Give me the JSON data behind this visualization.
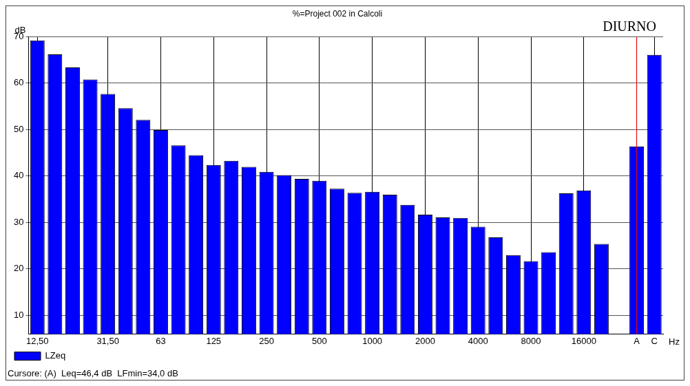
{
  "chart_data": {
    "type": "bar",
    "title": "%=Project 002 in Calcoli",
    "ylabel": "dB",
    "xlabel": "Hz",
    "annotations": [
      "DIURNO",
      "Cursore: (A)  Leq=46,4 dB  LFmin=34,0 dB"
    ],
    "categories": [
      "12,50",
      null,
      null,
      null,
      "31,50",
      null,
      null,
      "63",
      null,
      null,
      "125",
      null,
      null,
      "250",
      null,
      null,
      "500",
      null,
      null,
      "1000",
      null,
      null,
      "2000",
      null,
      null,
      "4000",
      null,
      null,
      "8000",
      null,
      null,
      "16000",
      null,
      null,
      "A",
      "C"
    ],
    "series": [
      {
        "name": "LZeq",
        "color": "#0000ff",
        "values": [
          69.2,
          66.2,
          63.4,
          60.8,
          57.7,
          54.6,
          52.1,
          49.9,
          46.6,
          44.5,
          42.4,
          43.3,
          42.0,
          40.9,
          40.2,
          39.4,
          39.0,
          37.3,
          36.4,
          36.6,
          36.0,
          33.8,
          31.7,
          31.1,
          31.0,
          29.1,
          26.8,
          23.0,
          21.7,
          23.6,
          36.3,
          36.9,
          25.4,
          null,
          46.4,
          66.1
        ]
      }
    ],
    "ylim": [
      6,
      70
    ],
    "yticks": [
      10,
      20,
      30,
      40,
      50,
      60,
      70
    ],
    "grid": true,
    "legend": "bottom left",
    "ref_lines": [
      {
        "axis": "x",
        "value": "A",
        "color": "#ff0000"
      }
    ]
  }
}
